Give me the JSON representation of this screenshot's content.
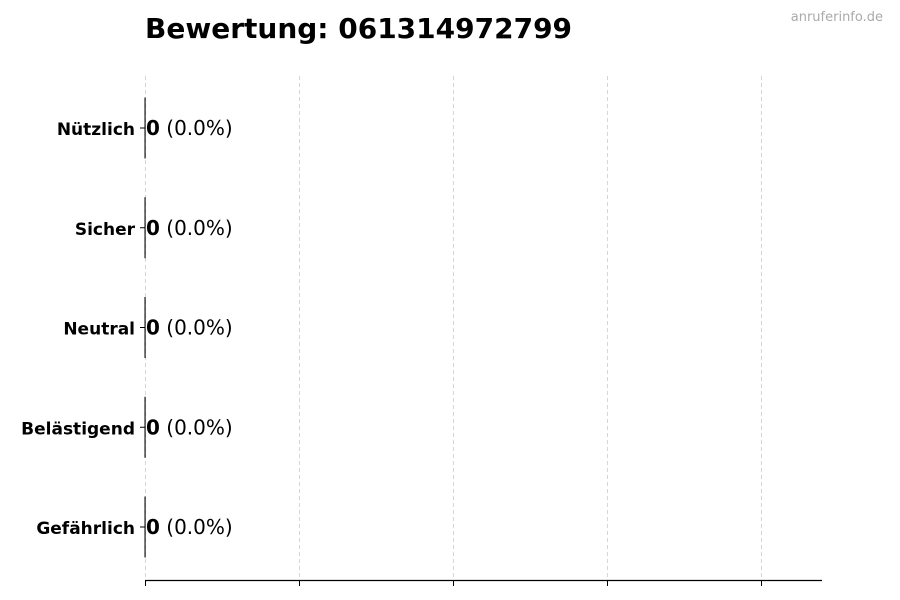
{
  "watermark": "anruferinfo.de",
  "chart_data": {
    "type": "bar",
    "orientation": "horizontal",
    "title": "Bewertung: 061314972799",
    "categories": [
      "Nützlich",
      "Sicher",
      "Neutral",
      "Belästigend",
      "Gefährlich"
    ],
    "values": [
      0,
      0,
      0,
      0,
      0
    ],
    "value_labels": [
      "0",
      "0",
      "0",
      "0",
      "0"
    ],
    "percent_labels": [
      "(0.0%)",
      "(0.0%)",
      "(0.0%)",
      "(0.0%)",
      "(0.0%)"
    ],
    "xlabel": "",
    "ylabel": "",
    "x_tick_labels_shown": false,
    "grid": "x-dashed",
    "colors": {
      "bar_edge": "#000000",
      "grid": "#cccccc",
      "text": "#000000",
      "watermark": "#aaaaaa"
    }
  }
}
